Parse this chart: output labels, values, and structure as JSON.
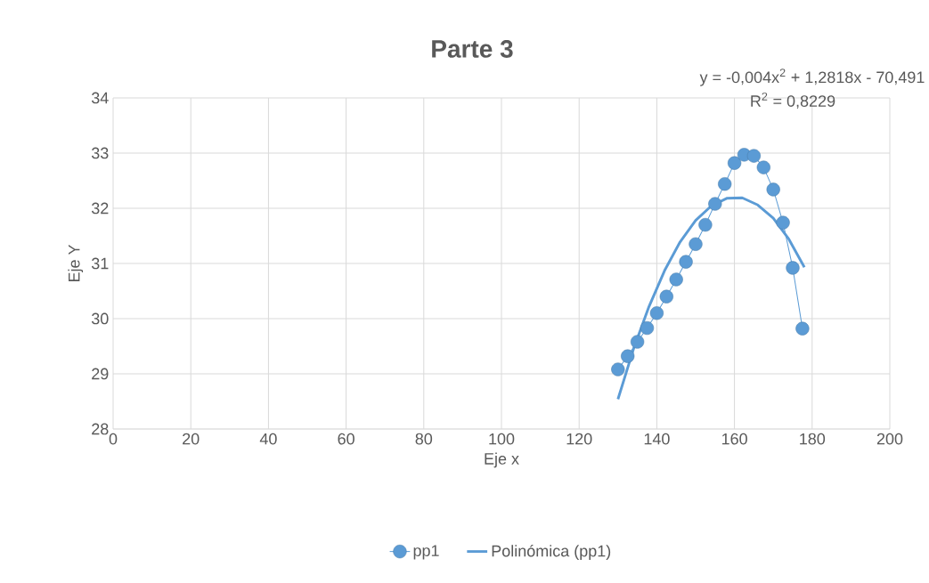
{
  "chart_data": {
    "type": "line",
    "title": "Parte 3",
    "xlabel": "Eje x",
    "ylabel": "Eje Y",
    "annotations": [
      "y = -0,004x$^{2}$ + 1,2818x - 70,491",
      "R$^{2}$ = 0,8229"
    ],
    "x": [
      130,
      132.5,
      135,
      137.5,
      140,
      142.5,
      145,
      147.5,
      150,
      152.5,
      155,
      157.5,
      160,
      162.5,
      165,
      167.5,
      170,
      172.5,
      175,
      177.5
    ],
    "series": [
      {
        "name": "pp1",
        "color": "#5b9bd5",
        "marker": "circle",
        "values": [
          29.08,
          29.32,
          29.58,
          29.83,
          30.1,
          30.4,
          30.71,
          31.03,
          31.35,
          31.7,
          32.08,
          32.44,
          32.82,
          32.97,
          32.95,
          32.74,
          32.34,
          31.74,
          30.92,
          29.82
        ]
      },
      {
        "name": "Polinómica (pp1)",
        "color": "#5b9bd5",
        "type": "line",
        "marker": "none",
        "x": [
          130,
          134,
          138,
          142,
          146,
          150,
          154,
          158,
          162,
          166,
          170,
          174,
          178
        ],
        "values": [
          28.54,
          29.45,
          30.22,
          30.87,
          31.39,
          31.78,
          32.04,
          32.18,
          32.19,
          32.06,
          31.82,
          31.44,
          30.93
        ]
      }
    ],
    "xlim": [
      0,
      200
    ],
    "ylim": [
      28,
      34
    ],
    "xticks": [
      0,
      20,
      40,
      60,
      80,
      100,
      120,
      140,
      160,
      180,
      200
    ],
    "yticks": [
      28,
      29,
      30,
      31,
      32,
      33,
      34
    ],
    "grid": true,
    "legend": "bottom"
  }
}
